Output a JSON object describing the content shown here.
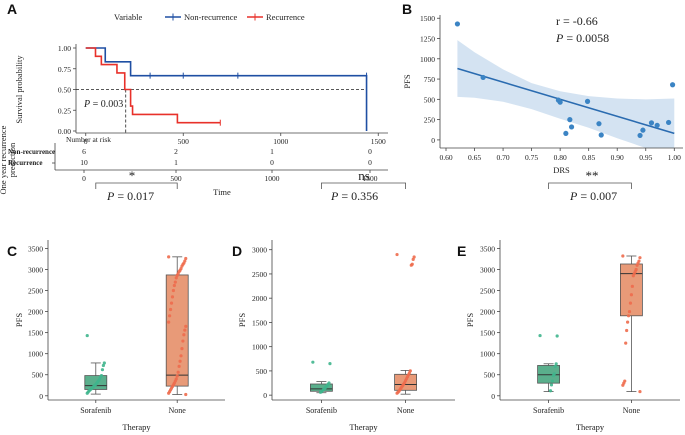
{
  "chart_data": [
    {
      "panel": "A",
      "type": "line",
      "subtype": "kaplan-meier",
      "legend_title": "Variable",
      "legend_placement": "top",
      "series": [
        {
          "name": "Non-recurrence",
          "color": "#1f4fa3",
          "steps": [
            [
              0,
              1.0
            ],
            [
              100,
              1.0
            ],
            [
              100,
              0.833
            ],
            [
              230,
              0.833
            ],
            [
              230,
              0.667
            ],
            [
              1440,
              0.667
            ],
            [
              1440,
              0.0
            ]
          ],
          "censor_times": [
            330,
            500,
            780,
            1440
          ]
        },
        {
          "name": "Recurrence",
          "color": "#e8312a",
          "steps": [
            [
              0,
              1.0
            ],
            [
              50,
              1.0
            ],
            [
              50,
              0.9
            ],
            [
              80,
              0.9
            ],
            [
              80,
              0.8
            ],
            [
              160,
              0.8
            ],
            [
              160,
              0.7
            ],
            [
              200,
              0.7
            ],
            [
              200,
              0.5
            ],
            [
              230,
              0.5
            ],
            [
              230,
              0.3
            ],
            [
              240,
              0.3
            ],
            [
              240,
              0.2
            ],
            [
              470,
              0.2
            ],
            [
              470,
              0.1
            ],
            [
              690,
              0.1
            ]
          ],
          "censor_times": [
            690
          ]
        }
      ],
      "median_line_y": 0.5,
      "ylabel": "Survival probability",
      "y_ticks": [
        "0.00",
        "0.25",
        "0.50",
        "0.75",
        "1.00"
      ],
      "x_ticks": [
        "0",
        "500",
        "1000",
        "1500"
      ],
      "xlim": [
        -50,
        1550
      ],
      "p_text": "P = 0.003",
      "risk_table": {
        "title": "Number at risk",
        "side_label": "One year recurrence prediction",
        "xlabel": "Time",
        "rows": [
          {
            "label": "Non-recurrence",
            "color": "#1f4fa3",
            "values": [
              "6",
              "2",
              "1",
              "0"
            ]
          },
          {
            "label": "Recurrence",
            "color": "#e8312a",
            "values": [
              "10",
              "1",
              "0",
              "0"
            ]
          }
        ]
      }
    },
    {
      "panel": "B",
      "type": "scatter",
      "xlabel": "DRS",
      "ylabel": "PFS",
      "r_text": "r = -0.66",
      "p_text": "P = 0.0058",
      "x_ticks": [
        "0.60",
        "0.65",
        "0.70",
        "0.75",
        "0.80",
        "0.85",
        "0.90",
        "0.95",
        "1.00"
      ],
      "y_ticks": [
        "0",
        "250",
        "500",
        "750",
        "1000",
        "1250",
        "1500"
      ],
      "xlim": [
        0.6,
        1.01
      ],
      "ylim": [
        -100,
        1540
      ],
      "points": [
        [
          0.62,
          1430
        ],
        [
          0.665,
          770
        ],
        [
          0.797,
          490
        ],
        [
          0.8,
          465
        ],
        [
          0.81,
          80
        ],
        [
          0.817,
          250
        ],
        [
          0.82,
          160
        ],
        [
          0.848,
          475
        ],
        [
          0.868,
          200
        ],
        [
          0.872,
          60
        ],
        [
          0.94,
          55
        ],
        [
          0.945,
          120
        ],
        [
          0.96,
          210
        ],
        [
          0.97,
          180
        ],
        [
          0.99,
          215
        ],
        [
          0.997,
          680
        ]
      ],
      "fit": {
        "x0": 0.62,
        "y0": 880,
        "x1": 1.0,
        "y1": 80
      },
      "band": {
        "x": [
          0.62,
          0.65,
          0.7,
          0.75,
          0.8,
          0.85,
          0.9,
          0.95,
          1.0
        ],
        "upper": [
          1230,
          1080,
          870,
          700,
          600,
          540,
          510,
          500,
          510
        ],
        "lower": [
          530,
          520,
          470,
          380,
          260,
          150,
          20,
          -120,
          -250
        ]
      },
      "color": "#3b84c4"
    },
    {
      "panel": "C",
      "type": "box",
      "xlabel": "Therapy",
      "ylabel": "PFS",
      "categories": [
        "Sorafenib",
        "None"
      ],
      "ylim": [
        -100,
        3700
      ],
      "y_ticks": [
        "0",
        "500",
        "1000",
        "1500",
        "2000",
        "2500",
        "3000",
        "3500"
      ],
      "boxes": [
        {
          "q1": 150,
          "median": 240,
          "q3": 480,
          "wmin": 40,
          "wmax": 780,
          "color": "#5aaf8c",
          "point_color": "#3fb58d",
          "points": [
            1430,
            780,
            720,
            620,
            480,
            450,
            400,
            360,
            330,
            300,
            270,
            250,
            230,
            200,
            180,
            160,
            140,
            120,
            90,
            60
          ]
        },
        {
          "q1": 230,
          "median": 490,
          "q3": 2870,
          "wmin": 30,
          "wmax": 3300,
          "color": "#e89a78",
          "point_color": "#ee6b4c",
          "points": [
            3300,
            3260,
            3200,
            3150,
            3120,
            3080,
            3020,
            2980,
            2950,
            2900,
            2860,
            2800,
            2700,
            2620,
            2500,
            2350,
            2200,
            2050,
            1900,
            1750,
            1650,
            1560,
            1450,
            1300,
            1120,
            950,
            820,
            700,
            560,
            470,
            400,
            350,
            300,
            260,
            220,
            180,
            140,
            100,
            60,
            30
          ]
        }
      ],
      "significance": "*",
      "p_text": "P = 0.017"
    },
    {
      "panel": "D",
      "type": "box",
      "xlabel": "Therapy",
      "ylabel": "PFS",
      "categories": [
        "Sorafenib",
        "None"
      ],
      "ylim": [
        -100,
        3200
      ],
      "y_ticks": [
        "0",
        "500",
        "1000",
        "1500",
        "2000",
        "2500",
        "3000"
      ],
      "boxes": [
        {
          "q1": 80,
          "median": 130,
          "q3": 230,
          "wmin": 50,
          "wmax": 280,
          "color": "#5aaf8c",
          "point_color": "#3fb58d",
          "points": [
            680,
            650,
            250,
            220,
            200,
            170,
            150,
            130,
            110,
            90,
            70,
            60
          ]
        },
        {
          "q1": 100,
          "median": 220,
          "q3": 430,
          "wmin": 20,
          "wmax": 510,
          "color": "#e89a78",
          "point_color": "#ee6b4c",
          "points": [
            2900,
            2850,
            2800,
            2700,
            2680,
            500,
            460,
            420,
            380,
            340,
            300,
            260,
            230,
            200,
            170,
            140,
            110,
            80,
            60,
            40
          ]
        }
      ],
      "significance": "ns",
      "p_text": "P = 0.356"
    },
    {
      "panel": "E",
      "type": "box",
      "xlabel": "Therapy",
      "ylabel": "PFS",
      "categories": [
        "Sorafenib",
        "None"
      ],
      "ylim": [
        -100,
        3700
      ],
      "y_ticks": [
        "0",
        "500",
        "1000",
        "1500",
        "2000",
        "2500",
        "3000",
        "3500"
      ],
      "boxes": [
        {
          "q1": 300,
          "median": 500,
          "q3": 720,
          "wmin": 100,
          "wmax": 760,
          "color": "#5aaf8c",
          "point_color": "#3fb58d",
          "points": [
            1430,
            1420,
            760,
            700,
            520,
            480,
            350,
            260,
            120
          ]
        },
        {
          "q1": 1900,
          "median": 2900,
          "q3": 3130,
          "wmin": 100,
          "wmax": 3320,
          "color": "#e89a78",
          "point_color": "#ee6b4c",
          "points": [
            3320,
            3280,
            3200,
            3150,
            3100,
            3000,
            2950,
            2900,
            2850,
            2600,
            2400,
            2200,
            2000,
            1900,
            1750,
            1550,
            1250,
            350,
            300,
            250,
            100
          ]
        }
      ],
      "significance": "**",
      "p_text": "P = 0.007"
    }
  ]
}
